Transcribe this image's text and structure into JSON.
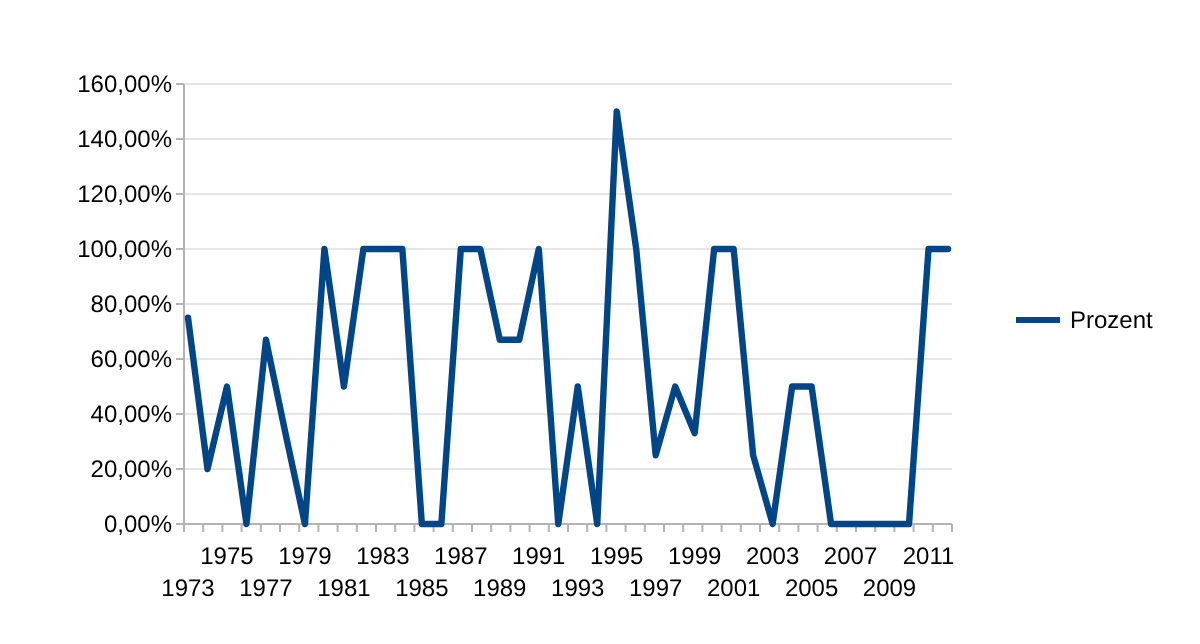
{
  "chart_data": {
    "type": "line",
    "categories": [
      "1973",
      null,
      "1975",
      null,
      "1977",
      null,
      "1979",
      null,
      "1981",
      null,
      "1983",
      null,
      "1985",
      null,
      "1987",
      null,
      "1989",
      null,
      "1991",
      null,
      "1993",
      null,
      "1995",
      null,
      "1997",
      null,
      "1999",
      null,
      "2001",
      null,
      "2003",
      null,
      "2005",
      null,
      "2007",
      null,
      "2009",
      null,
      "2011",
      null
    ],
    "series": [
      {
        "name": "Prozent",
        "color": "#004586",
        "values": [
          75,
          20,
          50,
          0,
          67,
          33,
          0,
          100,
          50,
          100,
          100,
          100,
          0,
          0,
          100,
          100,
          67,
          67,
          100,
          0,
          50,
          0,
          150,
          100,
          25,
          50,
          33,
          100,
          100,
          25,
          0,
          50,
          50,
          0,
          0,
          0,
          0,
          0,
          100,
          100
        ]
      }
    ],
    "ylim": [
      0,
      160
    ],
    "yticks": [
      {
        "value": 0,
        "label": "0,00%"
      },
      {
        "value": 20,
        "label": "20,00%"
      },
      {
        "value": 40,
        "label": "40,00%"
      },
      {
        "value": 60,
        "label": "60,00%"
      },
      {
        "value": 80,
        "label": "80,00%"
      },
      {
        "value": 100,
        "label": "100,00%"
      },
      {
        "value": 120,
        "label": "120,00%"
      },
      {
        "value": 140,
        "label": "140,00%"
      },
      {
        "value": 160,
        "label": "160,00%"
      }
    ],
    "grid": "y",
    "legend": "right",
    "marker": "none",
    "line_style": "solid"
  }
}
